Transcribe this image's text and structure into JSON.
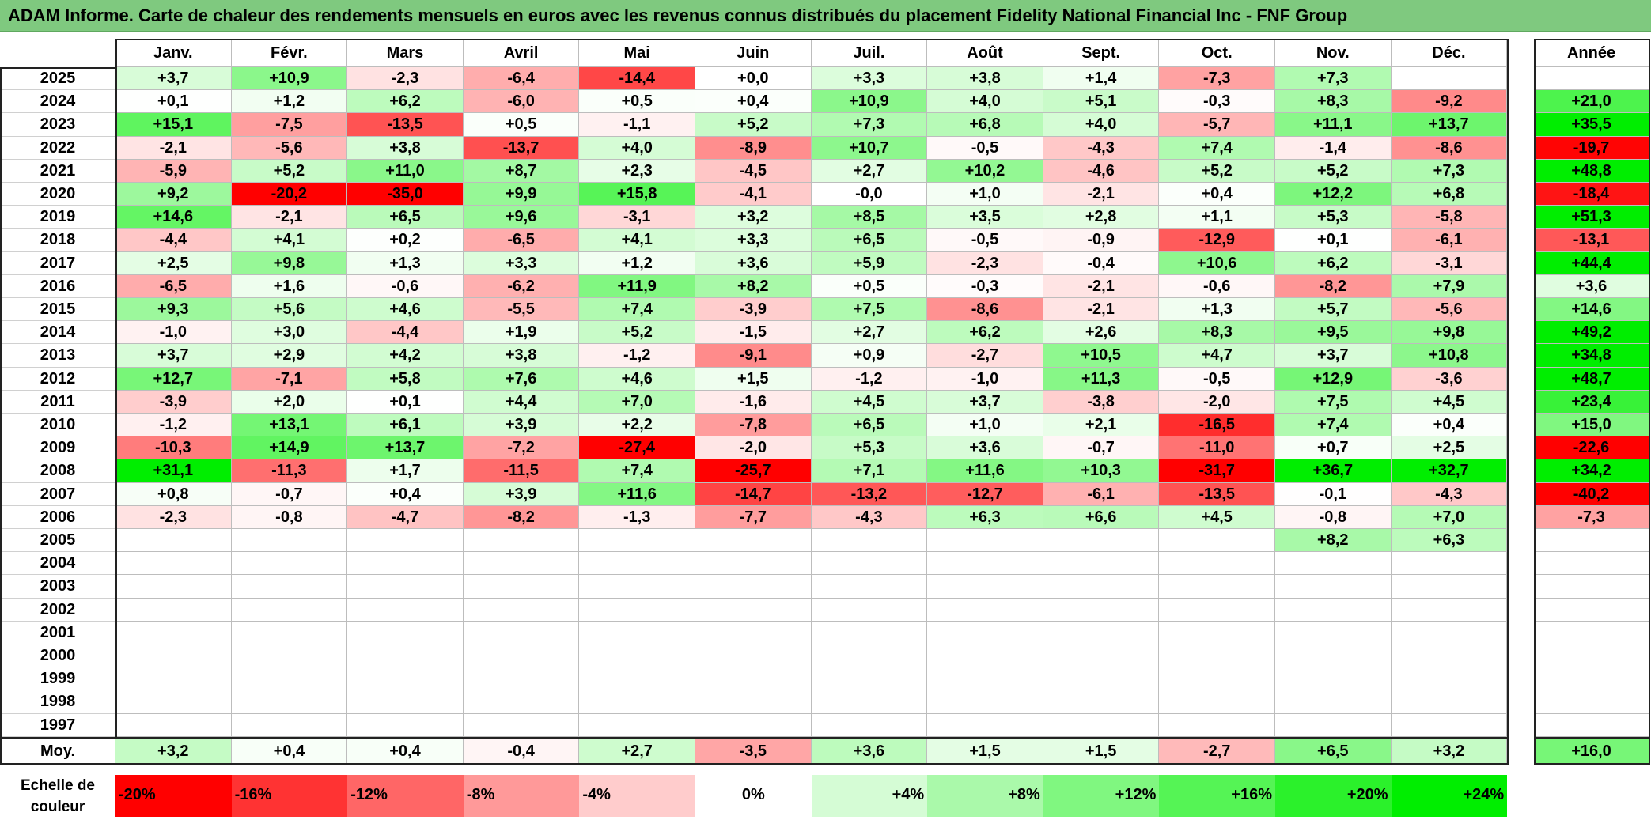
{
  "title": "ADAM Informe. Carte de chaleur des rendements mensuels en euros avec les revenus connus distribués du placement Fidelity National Financial Inc - FNF Group",
  "chart_data": {
    "type": "heatmap",
    "title": "ADAM Informe. Carte de chaleur des rendements mensuels en euros avec les revenus connus distribués du placement Fidelity National Financial Inc - FNF Group",
    "months": [
      "Janv.",
      "Févr.",
      "Mars",
      "Avril",
      "Mai",
      "Juin",
      "Juil.",
      "Août",
      "Sept.",
      "Oct.",
      "Nov.",
      "Déc."
    ],
    "year_header": "Année",
    "rows": [
      {
        "year": "2025",
        "values": [
          "+3,7",
          "+10,9",
          "-2,3",
          "-6,4",
          "-14,4",
          "+0,0",
          "+3,3",
          "+3,8",
          "+1,4",
          "-7,3",
          "+7,3",
          ""
        ],
        "annual": ""
      },
      {
        "year": "2024",
        "values": [
          "+0,1",
          "+1,2",
          "+6,2",
          "-6,0",
          "+0,5",
          "+0,4",
          "+10,9",
          "+4,0",
          "+5,1",
          "-0,3",
          "+8,3",
          "-9,2"
        ],
        "annual": "+21,0"
      },
      {
        "year": "2023",
        "values": [
          "+15,1",
          "-7,5",
          "-13,5",
          "+0,5",
          "-1,1",
          "+5,2",
          "+7,3",
          "+6,8",
          "+4,0",
          "-5,7",
          "+11,1",
          "+13,7"
        ],
        "annual": "+35,5"
      },
      {
        "year": "2022",
        "values": [
          "-2,1",
          "-5,6",
          "+3,8",
          "-13,7",
          "+4,0",
          "-8,9",
          "+10,7",
          "-0,5",
          "-4,3",
          "+7,4",
          "-1,4",
          "-8,6"
        ],
        "annual": "-19,7"
      },
      {
        "year": "2021",
        "values": [
          "-5,9",
          "+5,2",
          "+11,0",
          "+8,7",
          "+2,3",
          "-4,5",
          "+2,7",
          "+10,2",
          "-4,6",
          "+5,2",
          "+5,2",
          "+7,3"
        ],
        "annual": "+48,8"
      },
      {
        "year": "2020",
        "values": [
          "+9,2",
          "-20,2",
          "-35,0",
          "+9,9",
          "+15,8",
          "-4,1",
          "-0,0",
          "+1,0",
          "-2,1",
          "+0,4",
          "+12,2",
          "+6,8"
        ],
        "annual": "-18,4"
      },
      {
        "year": "2019",
        "values": [
          "+14,6",
          "-2,1",
          "+6,5",
          "+9,6",
          "-3,1",
          "+3,2",
          "+8,5",
          "+3,5",
          "+2,8",
          "+1,1",
          "+5,3",
          "-5,8"
        ],
        "annual": "+51,3"
      },
      {
        "year": "2018",
        "values": [
          "-4,4",
          "+4,1",
          "+0,2",
          "-6,5",
          "+4,1",
          "+3,3",
          "+6,5",
          "-0,5",
          "-0,9",
          "-12,9",
          "+0,1",
          "-6,1"
        ],
        "annual": "-13,1"
      },
      {
        "year": "2017",
        "values": [
          "+2,5",
          "+9,8",
          "+1,3",
          "+3,3",
          "+1,2",
          "+3,6",
          "+5,9",
          "-2,3",
          "-0,4",
          "+10,6",
          "+6,2",
          "-3,1"
        ],
        "annual": "+44,4"
      },
      {
        "year": "2016",
        "values": [
          "-6,5",
          "+1,6",
          "-0,6",
          "-6,2",
          "+11,9",
          "+8,2",
          "+0,5",
          "-0,3",
          "-2,1",
          "-0,6",
          "-8,2",
          "+7,9"
        ],
        "annual": "+3,6"
      },
      {
        "year": "2015",
        "values": [
          "+9,3",
          "+5,6",
          "+4,6",
          "-5,5",
          "+7,4",
          "-3,9",
          "+7,5",
          "-8,6",
          "-2,1",
          "+1,3",
          "+5,7",
          "-5,6"
        ],
        "annual": "+14,6"
      },
      {
        "year": "2014",
        "values": [
          "-1,0",
          "+3,0",
          "-4,4",
          "+1,9",
          "+5,2",
          "-1,5",
          "+2,7",
          "+6,2",
          "+2,6",
          "+8,3",
          "+9,5",
          "+9,8"
        ],
        "annual": "+49,2"
      },
      {
        "year": "2013",
        "values": [
          "+3,7",
          "+2,9",
          "+4,2",
          "+3,8",
          "-1,2",
          "-9,1",
          "+0,9",
          "-2,7",
          "+10,5",
          "+4,7",
          "+3,7",
          "+10,8"
        ],
        "annual": "+34,8"
      },
      {
        "year": "2012",
        "values": [
          "+12,7",
          "-7,1",
          "+5,8",
          "+7,6",
          "+4,6",
          "+1,5",
          "-1,2",
          "-1,0",
          "+11,3",
          "-0,5",
          "+12,9",
          "-3,6"
        ],
        "annual": "+48,7"
      },
      {
        "year": "2011",
        "values": [
          "-3,9",
          "+2,0",
          "+0,1",
          "+4,4",
          "+7,0",
          "-1,6",
          "+4,5",
          "+3,7",
          "-3,8",
          "-2,0",
          "+7,5",
          "+4,5"
        ],
        "annual": "+23,4"
      },
      {
        "year": "2010",
        "values": [
          "-1,2",
          "+13,1",
          "+6,1",
          "+3,9",
          "+2,2",
          "-7,8",
          "+6,5",
          "+1,0",
          "+2,1",
          "-16,5",
          "+7,4",
          "+0,4"
        ],
        "annual": "+15,0"
      },
      {
        "year": "2009",
        "values": [
          "-10,3",
          "+14,9",
          "+13,7",
          "-7,2",
          "-27,4",
          "-2,0",
          "+5,3",
          "+3,6",
          "-0,7",
          "-11,0",
          "+0,7",
          "+2,5"
        ],
        "annual": "-22,6"
      },
      {
        "year": "2008",
        "values": [
          "+31,1",
          "-11,3",
          "+1,7",
          "-11,5",
          "+7,4",
          "-25,7",
          "+7,1",
          "+11,6",
          "+10,3",
          "-31,7",
          "+36,7",
          "+32,7"
        ],
        "annual": "+34,2"
      },
      {
        "year": "2007",
        "values": [
          "+0,8",
          "-0,7",
          "+0,4",
          "+3,9",
          "+11,6",
          "-14,7",
          "-13,2",
          "-12,7",
          "-6,1",
          "-13,5",
          "-0,1",
          "-4,3"
        ],
        "annual": "-40,2"
      },
      {
        "year": "2006",
        "values": [
          "-2,3",
          "-0,8",
          "-4,7",
          "-8,2",
          "-1,3",
          "-7,7",
          "-4,3",
          "+6,3",
          "+6,6",
          "+4,5",
          "-0,8",
          "+7,0"
        ],
        "annual": "-7,3"
      },
      {
        "year": "2005",
        "values": [
          "",
          "",
          "",
          "",
          "",
          "",
          "",
          "",
          "",
          "",
          "+8,2",
          "+6,3"
        ],
        "annual": ""
      },
      {
        "year": "2004",
        "values": [
          "",
          "",
          "",
          "",
          "",
          "",
          "",
          "",
          "",
          "",
          "",
          ""
        ],
        "annual": ""
      },
      {
        "year": "2003",
        "values": [
          "",
          "",
          "",
          "",
          "",
          "",
          "",
          "",
          "",
          "",
          "",
          ""
        ],
        "annual": ""
      },
      {
        "year": "2002",
        "values": [
          "",
          "",
          "",
          "",
          "",
          "",
          "",
          "",
          "",
          "",
          "",
          ""
        ],
        "annual": ""
      },
      {
        "year": "2001",
        "values": [
          "",
          "",
          "",
          "",
          "",
          "",
          "",
          "",
          "",
          "",
          "",
          ""
        ],
        "annual": ""
      },
      {
        "year": "2000",
        "values": [
          "",
          "",
          "",
          "",
          "",
          "",
          "",
          "",
          "",
          "",
          "",
          ""
        ],
        "annual": ""
      },
      {
        "year": "1999",
        "values": [
          "",
          "",
          "",
          "",
          "",
          "",
          "",
          "",
          "",
          "",
          "",
          ""
        ],
        "annual": ""
      },
      {
        "year": "1998",
        "values": [
          "",
          "",
          "",
          "",
          "",
          "",
          "",
          "",
          "",
          "",
          "",
          ""
        ],
        "annual": ""
      },
      {
        "year": "1997",
        "values": [
          "",
          "",
          "",
          "",
          "",
          "",
          "",
          "",
          "",
          "",
          "",
          ""
        ],
        "annual": ""
      }
    ],
    "average": {
      "label": "Moy.",
      "values": [
        "+3,2",
        "+0,4",
        "+0,4",
        "-0,4",
        "+2,7",
        "-3,5",
        "+3,6",
        "+1,5",
        "+1,5",
        "-2,7",
        "+6,5",
        "+3,2"
      ],
      "annual": "+16,0"
    },
    "scale": {
      "label": "Echelle de couleur",
      "stops": [
        "-20%",
        "-16%",
        "-12%",
        "-8%",
        "-4%",
        "0%",
        "+4%",
        "+8%",
        "+12%",
        "+16%",
        "+20%",
        "+24%"
      ],
      "stop_values": [
        -20,
        -16,
        -12,
        -8,
        -4,
        0,
        4,
        8,
        12,
        16,
        20,
        24
      ]
    },
    "colors": {
      "negative_max": "#ff0000",
      "neutral": "#ffffff",
      "positive_max": "#00ee00",
      "title_bar": "#7fc97f"
    }
  }
}
